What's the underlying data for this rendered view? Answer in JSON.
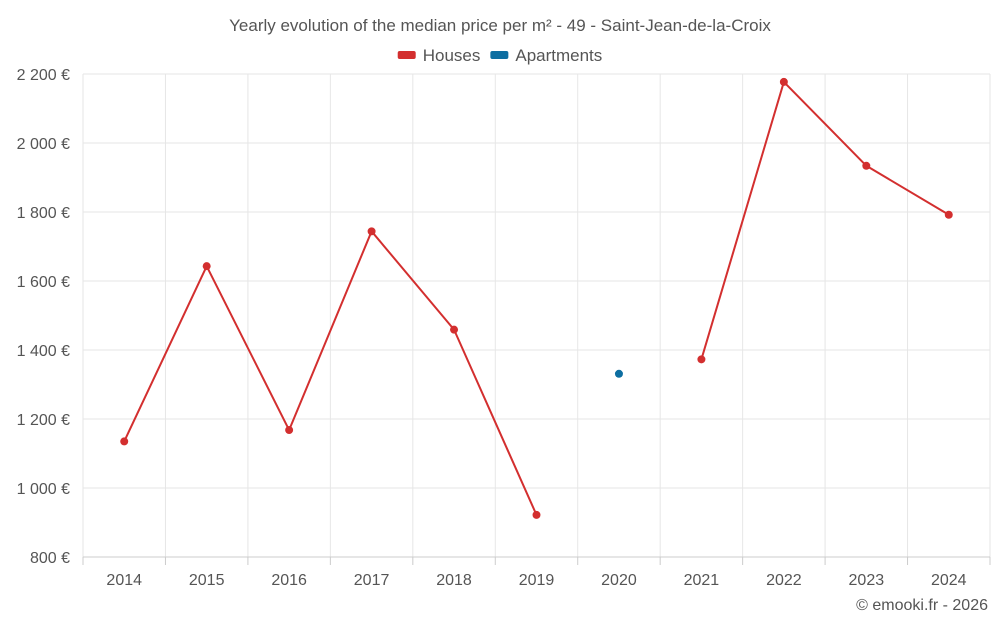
{
  "chart_data": {
    "type": "line",
    "title": "Yearly evolution of the median price per m² - 49 - Saint-Jean-de-la-Croix",
    "categories": [
      "2014",
      "2015",
      "2016",
      "2017",
      "2018",
      "2019",
      "2020",
      "2021",
      "2022",
      "2023",
      "2024"
    ],
    "series": [
      {
        "name": "Houses",
        "color": "#d32f2f",
        "values": [
          1135,
          1643,
          1168,
          1744,
          1459,
          922,
          null,
          1373,
          2177,
          1934,
          1792
        ]
      },
      {
        "name": "Apartments",
        "color": "#0d6ea1",
        "values": [
          null,
          null,
          null,
          null,
          null,
          null,
          1331,
          null,
          null,
          null,
          null
        ]
      }
    ],
    "ylim": [
      800,
      2200
    ],
    "yticks": [
      800,
      1000,
      1200,
      1400,
      1600,
      1800,
      2000,
      2200
    ],
    "ytick_labels": [
      "800 €",
      "1 000 €",
      "1 200 €",
      "1 400 €",
      "1 600 €",
      "1 800 €",
      "2 000 €",
      "2 200 €"
    ],
    "xlabel": "",
    "ylabel": "",
    "grid": true,
    "legend": "top-center"
  },
  "credit": "© emooki.fr - 2026"
}
